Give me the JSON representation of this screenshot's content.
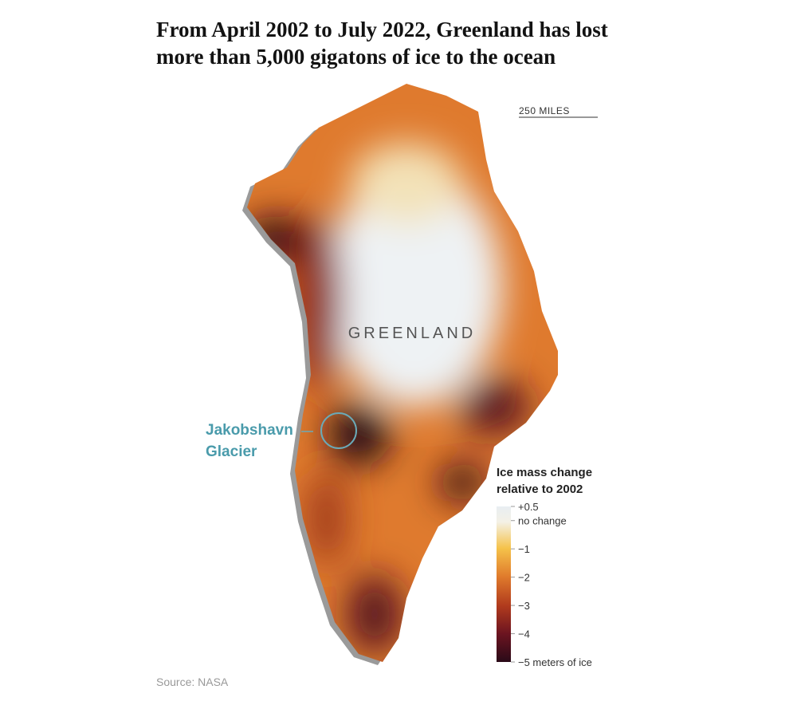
{
  "header": {
    "title": "From April 2002 to July 2022, Greenland has lost more than 5,000 gigatons of ice to the ocean"
  },
  "map": {
    "scale_label": "250 MILES",
    "region_label": "GREENLAND",
    "annotation": "Jakobshavn Glacier"
  },
  "legend": {
    "title": "Ice mass change relative to 2002",
    "range": [
      0.5,
      -5
    ],
    "ticks": [
      {
        "value": 0.5,
        "label": "+0.5"
      },
      {
        "value": 0,
        "label": "no change"
      },
      {
        "value": -1,
        "label": "−1"
      },
      {
        "value": -2,
        "label": "−2"
      },
      {
        "value": -3,
        "label": "−3"
      },
      {
        "value": -4,
        "label": "−4"
      },
      {
        "value": -5,
        "label": "−5 meters of ice"
      }
    ]
  },
  "footer": {
    "source": "Source: NASA"
  }
}
